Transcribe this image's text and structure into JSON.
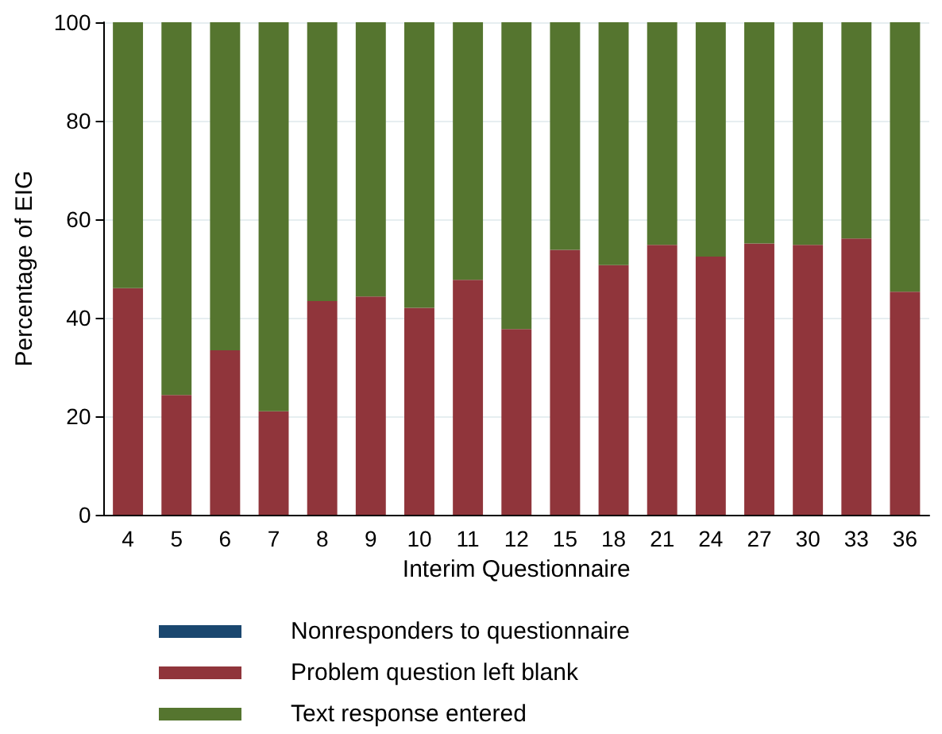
{
  "chart_data": {
    "type": "bar",
    "stacked": true,
    "xlabel": "Interim Questionnaire",
    "ylabel": "Percentage of EIG",
    "categories": [
      "4",
      "5",
      "6",
      "7",
      "8",
      "9",
      "10",
      "11",
      "12",
      "15",
      "18",
      "21",
      "24",
      "27",
      "30",
      "33",
      "36"
    ],
    "series": [
      {
        "name": "Nonresponders to questionnaire",
        "color": "#1a476f",
        "values": [
          0,
          0,
          0,
          0,
          0,
          0,
          0,
          0,
          0,
          0,
          0,
          0,
          0,
          0,
          0,
          0,
          0
        ]
      },
      {
        "name": "Problem question left blank",
        "color": "#90353b",
        "values": [
          46,
          24.3,
          33.4,
          21,
          43.4,
          44.3,
          42,
          47.7,
          37.7,
          53.8,
          50.7,
          54.8,
          52.4,
          55.1,
          54.8,
          56.1,
          45.3
        ]
      },
      {
        "name": "Text response entered",
        "color": "#55752f",
        "values": [
          54,
          75.7,
          66.6,
          79,
          56.6,
          55.7,
          58,
          52.3,
          62.3,
          46.5,
          49.3,
          45.2,
          47.6,
          44.9,
          45.2,
          43.9,
          55
        ]
      }
    ],
    "ylim": [
      0,
      100
    ],
    "yticks": [
      0,
      20,
      40,
      60,
      80,
      100
    ],
    "grid": "y",
    "legend": "bottom"
  }
}
